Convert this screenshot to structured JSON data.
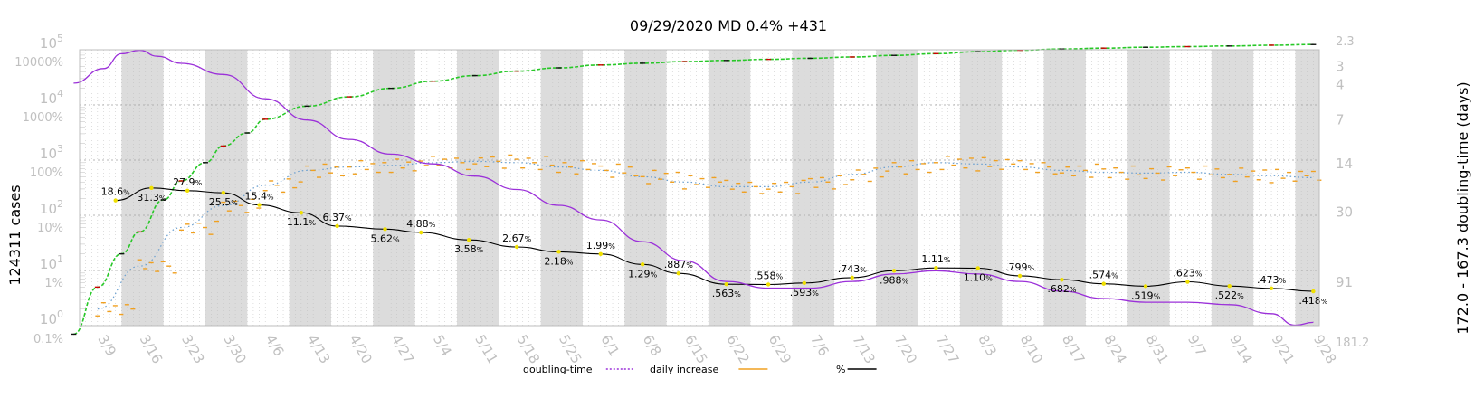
{
  "chart_data": {
    "type": "line",
    "title": "09/29/2020 MD 0.4% +431",
    "ylabel_left": "124311 cases",
    "ylabel_right": "172.0 - 167.3 doubling-time (days)",
    "x_ticks": [
      "3/9",
      "3/16",
      "3/23",
      "3/30",
      "4/6",
      "4/13",
      "4/20",
      "4/27",
      "5/4",
      "5/11",
      "5/18",
      "5/25",
      "6/1",
      "6/8",
      "6/15",
      "6/22",
      "6/29",
      "7/6",
      "7/13",
      "7/20",
      "7/27",
      "8/3",
      "8/10",
      "8/17",
      "8/24",
      "8/31",
      "9/7",
      "9/14",
      "9/21",
      "9/28"
    ],
    "y_ticks_cases": [
      "10^0",
      "10^1",
      "10^2",
      "10^3",
      "10^4",
      "10^5"
    ],
    "y_ticks_percent": [
      "0.1%",
      "1%",
      "10%",
      "100%",
      "1000%",
      "10000%"
    ],
    "y_ticks_doubling": [
      "2.3",
      "3",
      "4",
      "7",
      "14",
      "30",
      "91",
      "181.2"
    ],
    "legend": [
      {
        "label": "doubling-time",
        "color": "#9b30d9",
        "style": "dotted"
      },
      {
        "label": "daily increase",
        "color": "#f0a020",
        "style": "solid"
      },
      {
        "label": "%",
        "color": "#000000",
        "style": "solid"
      }
    ],
    "percent_annotations": [
      {
        "date": "3/12",
        "label": "18.6",
        "value": 18.6
      },
      {
        "date": "3/18",
        "label": "31.3",
        "value": 31.3
      },
      {
        "date": "3/24",
        "label": "27.9",
        "value": 27.9
      },
      {
        "date": "3/30",
        "label": "25.5",
        "value": 25.5
      },
      {
        "date": "4/5",
        "label": "15.4",
        "value": 15.4
      },
      {
        "date": "4/12",
        "label": "11.1",
        "value": 11.1
      },
      {
        "date": "4/18",
        "label": "6.37",
        "value": 6.37
      },
      {
        "date": "4/26",
        "label": "5.62",
        "value": 5.62
      },
      {
        "date": "5/2",
        "label": "4.88",
        "value": 4.88
      },
      {
        "date": "5/10",
        "label": "3.58",
        "value": 3.58
      },
      {
        "date": "5/18",
        "label": "2.67",
        "value": 2.67
      },
      {
        "date": "5/25",
        "label": "2.18",
        "value": 2.18
      },
      {
        "date": "6/1",
        "label": "1.99",
        "value": 1.99
      },
      {
        "date": "6/8",
        "label": "1.29",
        "value": 1.29
      },
      {
        "date": "6/14",
        "label": ".887",
        "value": 0.887
      },
      {
        "date": "6/22",
        "label": ".563",
        "value": 0.563
      },
      {
        "date": "6/29",
        "label": ".558",
        "value": 0.558
      },
      {
        "date": "7/5",
        "label": ".593",
        "value": 0.593
      },
      {
        "date": "7/13",
        "label": ".743",
        "value": 0.743
      },
      {
        "date": "7/20",
        "label": ".988",
        "value": 0.988
      },
      {
        "date": "7/27",
        "label": "1.11",
        "value": 1.11
      },
      {
        "date": "8/3",
        "label": "1.10",
        "value": 1.1
      },
      {
        "date": "8/10",
        "label": ".799",
        "value": 0.799
      },
      {
        "date": "8/17",
        "label": ".682",
        "value": 0.682
      },
      {
        "date": "8/24",
        "label": ".574",
        "value": 0.574
      },
      {
        "date": "8/31",
        "label": ".519",
        "value": 0.519
      },
      {
        "date": "9/7",
        "label": ".623",
        "value": 0.623
      },
      {
        "date": "9/14",
        "label": ".522",
        "value": 0.522
      },
      {
        "date": "9/21",
        "label": ".473",
        "value": 0.473
      },
      {
        "date": "9/28",
        "label": ".418",
        "value": 0.418
      }
    ],
    "cumulative_cases": [
      {
        "date": "3/5",
        "value": 0.7
      },
      {
        "date": "3/9",
        "value": 5
      },
      {
        "date": "3/13",
        "value": 20
      },
      {
        "date": "3/16",
        "value": 50
      },
      {
        "date": "3/20",
        "value": 190
      },
      {
        "date": "3/23",
        "value": 420
      },
      {
        "date": "3/27",
        "value": 900
      },
      {
        "date": "3/30",
        "value": 1800
      },
      {
        "date": "4/3",
        "value": 3100
      },
      {
        "date": "4/6",
        "value": 5500
      },
      {
        "date": "4/13",
        "value": 9500
      },
      {
        "date": "4/20",
        "value": 14000
      },
      {
        "date": "4/27",
        "value": 20000
      },
      {
        "date": "5/4",
        "value": 27000
      },
      {
        "date": "5/11",
        "value": 34000
      },
      {
        "date": "5/18",
        "value": 41000
      },
      {
        "date": "5/25",
        "value": 47000
      },
      {
        "date": "6/1",
        "value": 53000
      },
      {
        "date": "6/8",
        "value": 57000
      },
      {
        "date": "6/15",
        "value": 61000
      },
      {
        "date": "6/22",
        "value": 64000
      },
      {
        "date": "6/29",
        "value": 67000
      },
      {
        "date": "7/6",
        "value": 70000
      },
      {
        "date": "7/13",
        "value": 74000
      },
      {
        "date": "7/20",
        "value": 79000
      },
      {
        "date": "7/27",
        "value": 85000
      },
      {
        "date": "8/3",
        "value": 92000
      },
      {
        "date": "8/10",
        "value": 98000
      },
      {
        "date": "8/17",
        "value": 103000
      },
      {
        "date": "8/24",
        "value": 107000
      },
      {
        "date": "8/31",
        "value": 111000
      },
      {
        "date": "9/7",
        "value": 114000
      },
      {
        "date": "9/14",
        "value": 117000
      },
      {
        "date": "9/21",
        "value": 121000
      },
      {
        "date": "9/28",
        "value": 124311
      }
    ],
    "daily_increase": [
      {
        "date": "3/9",
        "value": 2
      },
      {
        "date": "3/16",
        "value": 12
      },
      {
        "date": "3/23",
        "value": 60
      },
      {
        "date": "3/30",
        "value": 150
      },
      {
        "date": "4/6",
        "value": 350
      },
      {
        "date": "4/13",
        "value": 650
      },
      {
        "date": "4/20",
        "value": 750
      },
      {
        "date": "4/27",
        "value": 800
      },
      {
        "date": "5/4",
        "value": 900
      },
      {
        "date": "5/11",
        "value": 950
      },
      {
        "date": "5/18",
        "value": 900
      },
      {
        "date": "5/25",
        "value": 750
      },
      {
        "date": "6/1",
        "value": 650
      },
      {
        "date": "6/8",
        "value": 500
      },
      {
        "date": "6/15",
        "value": 400
      },
      {
        "date": "6/22",
        "value": 330
      },
      {
        "date": "6/29",
        "value": 330
      },
      {
        "date": "7/6",
        "value": 400
      },
      {
        "date": "7/13",
        "value": 550
      },
      {
        "date": "7/20",
        "value": 750
      },
      {
        "date": "7/27",
        "value": 900
      },
      {
        "date": "8/3",
        "value": 850
      },
      {
        "date": "8/10",
        "value": 750
      },
      {
        "date": "8/17",
        "value": 650
      },
      {
        "date": "8/24",
        "value": 600
      },
      {
        "date": "8/31",
        "value": 580
      },
      {
        "date": "9/7",
        "value": 600
      },
      {
        "date": "9/14",
        "value": 550
      },
      {
        "date": "9/21",
        "value": 520
      },
      {
        "date": "9/28",
        "value": 480
      }
    ],
    "doubling_time": [
      {
        "date": "3/5",
        "value": 3.9
      },
      {
        "date": "3/10",
        "value": 3.1
      },
      {
        "date": "3/13",
        "value": 2.45
      },
      {
        "date": "3/16",
        "value": 2.32
      },
      {
        "date": "3/19",
        "value": 2.55
      },
      {
        "date": "3/23",
        "value": 2.85
      },
      {
        "date": "3/30",
        "value": 3.4
      },
      {
        "date": "4/6",
        "value": 5
      },
      {
        "date": "4/13",
        "value": 7
      },
      {
        "date": "4/20",
        "value": 9.5
      },
      {
        "date": "4/27",
        "value": 12
      },
      {
        "date": "5/4",
        "value": 14
      },
      {
        "date": "5/11",
        "value": 17
      },
      {
        "date": "5/18",
        "value": 21
      },
      {
        "date": "5/25",
        "value": 27
      },
      {
        "date": "6/1",
        "value": 34
      },
      {
        "date": "6/8",
        "value": 48
      },
      {
        "date": "6/15",
        "value": 65
      },
      {
        "date": "6/22",
        "value": 90
      },
      {
        "date": "6/29",
        "value": 100
      },
      {
        "date": "7/6",
        "value": 100
      },
      {
        "date": "7/13",
        "value": 90
      },
      {
        "date": "7/20",
        "value": 80
      },
      {
        "date": "7/27",
        "value": 76
      },
      {
        "date": "8/3",
        "value": 80
      },
      {
        "date": "8/10",
        "value": 90
      },
      {
        "date": "8/17",
        "value": 105
      },
      {
        "date": "8/24",
        "value": 118
      },
      {
        "date": "8/31",
        "value": 125
      },
      {
        "date": "9/7",
        "value": 125
      },
      {
        "date": "9/14",
        "value": 130
      },
      {
        "date": "9/21",
        "value": 150
      },
      {
        "date": "9/25",
        "value": 180
      },
      {
        "date": "9/28",
        "value": 172
      }
    ],
    "colors": {
      "cumulative": "#28c828",
      "cumulative_marker": "#cc0000",
      "daily": "#f0a020",
      "daily_avg": "#6a9fd0",
      "percent": "#000000",
      "percent_marker": "#f0e000",
      "doubling": "#9b30d9",
      "week_band": "#dcdcdc"
    }
  }
}
